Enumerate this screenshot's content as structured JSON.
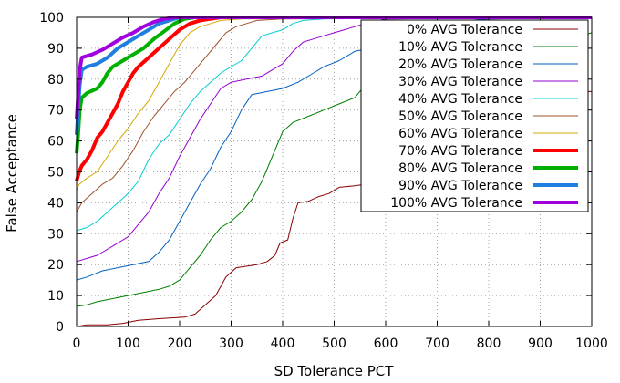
{
  "chart_data": {
    "type": "line",
    "title": "",
    "xlabel": "SD Tolerance PCT",
    "ylabel": "False Acceptance",
    "xlim": [
      0,
      1000
    ],
    "ylim": [
      0,
      100
    ],
    "xticks": [
      "0",
      "100",
      "200",
      "300",
      "400",
      "500",
      "600",
      "700",
      "800",
      "900",
      "1000"
    ],
    "yticks": [
      "0",
      "10",
      "20",
      "30",
      "40",
      "50",
      "60",
      "70",
      "80",
      "90",
      "100"
    ],
    "grid": true,
    "legend_position": "top-right",
    "series": [
      {
        "name": "0% AVG Tolerance",
        "color": "#8b0000",
        "width": 1,
        "points": [
          [
            0,
            0
          ],
          [
            20,
            0.5
          ],
          [
            60,
            0.5
          ],
          [
            90,
            1
          ],
          [
            120,
            2
          ],
          [
            160,
            2.5
          ],
          [
            210,
            3
          ],
          [
            230,
            4
          ],
          [
            250,
            7
          ],
          [
            270,
            10
          ],
          [
            290,
            16
          ],
          [
            310,
            19
          ],
          [
            350,
            20
          ],
          [
            370,
            21
          ],
          [
            385,
            23
          ],
          [
            395,
            27
          ],
          [
            410,
            28
          ],
          [
            420,
            35
          ],
          [
            430,
            40
          ],
          [
            450,
            40.5
          ],
          [
            470,
            42
          ],
          [
            490,
            43
          ],
          [
            510,
            45
          ],
          [
            540,
            45.5
          ],
          [
            560,
            46
          ],
          [
            580,
            47
          ],
          [
            600,
            48
          ],
          [
            640,
            50
          ],
          [
            700,
            52
          ],
          [
            750,
            53
          ],
          [
            800,
            58
          ],
          [
            840,
            60
          ],
          [
            880,
            64
          ],
          [
            920,
            68
          ],
          [
            960,
            72
          ],
          [
            990,
            76
          ],
          [
            1000,
            76
          ]
        ]
      },
      {
        "name": "10% AVG Tolerance",
        "color": "#008000",
        "width": 1,
        "points": [
          [
            0,
            6.5
          ],
          [
            20,
            7
          ],
          [
            40,
            8
          ],
          [
            70,
            9
          ],
          [
            100,
            10
          ],
          [
            130,
            11
          ],
          [
            160,
            12
          ],
          [
            180,
            13
          ],
          [
            200,
            15
          ],
          [
            220,
            19
          ],
          [
            240,
            23
          ],
          [
            260,
            28
          ],
          [
            280,
            32
          ],
          [
            300,
            34
          ],
          [
            320,
            37
          ],
          [
            340,
            41
          ],
          [
            360,
            47
          ],
          [
            380,
            55
          ],
          [
            400,
            63
          ],
          [
            420,
            66
          ],
          [
            450,
            68
          ],
          [
            480,
            70
          ],
          [
            510,
            72
          ],
          [
            540,
            74
          ],
          [
            560,
            78
          ],
          [
            580,
            80
          ],
          [
            620,
            81
          ],
          [
            660,
            83
          ],
          [
            700,
            85
          ],
          [
            740,
            86
          ],
          [
            780,
            87
          ],
          [
            820,
            89
          ],
          [
            860,
            90
          ],
          [
            900,
            92
          ],
          [
            940,
            93
          ],
          [
            980,
            94
          ],
          [
            1000,
            95
          ]
        ]
      },
      {
        "name": "20% AVG Tolerance",
        "color": "#0060c0",
        "width": 1,
        "points": [
          [
            0,
            15
          ],
          [
            20,
            16
          ],
          [
            50,
            18
          ],
          [
            80,
            19
          ],
          [
            110,
            20
          ],
          [
            140,
            21
          ],
          [
            160,
            24
          ],
          [
            180,
            28
          ],
          [
            200,
            34
          ],
          [
            220,
            40
          ],
          [
            240,
            46
          ],
          [
            260,
            51
          ],
          [
            280,
            58
          ],
          [
            300,
            63
          ],
          [
            320,
            70
          ],
          [
            340,
            75
          ],
          [
            370,
            76
          ],
          [
            400,
            77
          ],
          [
            430,
            79
          ],
          [
            460,
            82
          ],
          [
            480,
            84
          ],
          [
            510,
            86
          ],
          [
            540,
            89
          ],
          [
            570,
            90
          ],
          [
            600,
            92
          ],
          [
            640,
            94
          ],
          [
            680,
            96
          ],
          [
            720,
            98
          ],
          [
            760,
            99
          ],
          [
            800,
            99.5
          ],
          [
            1000,
            100
          ]
        ]
      },
      {
        "name": "30% AVG Tolerance",
        "color": "#9400d3",
        "width": 1,
        "points": [
          [
            0,
            21
          ],
          [
            20,
            22
          ],
          [
            40,
            23
          ],
          [
            70,
            26
          ],
          [
            100,
            29
          ],
          [
            120,
            33
          ],
          [
            140,
            37
          ],
          [
            160,
            43
          ],
          [
            180,
            48
          ],
          [
            200,
            55
          ],
          [
            220,
            61
          ],
          [
            240,
            67
          ],
          [
            260,
            72
          ],
          [
            280,
            77
          ],
          [
            300,
            79
          ],
          [
            330,
            80
          ],
          [
            360,
            81
          ],
          [
            380,
            83
          ],
          [
            400,
            85
          ],
          [
            420,
            89
          ],
          [
            440,
            92
          ],
          [
            460,
            93
          ],
          [
            480,
            94
          ],
          [
            500,
            95
          ],
          [
            520,
            96
          ],
          [
            560,
            98
          ],
          [
            600,
            99.5
          ],
          [
            1000,
            100
          ]
        ]
      },
      {
        "name": "40% AVG Tolerance",
        "color": "#00ced1",
        "width": 1,
        "points": [
          [
            0,
            31
          ],
          [
            20,
            32
          ],
          [
            40,
            34
          ],
          [
            60,
            37
          ],
          [
            80,
            40
          ],
          [
            100,
            43
          ],
          [
            120,
            47
          ],
          [
            140,
            54
          ],
          [
            160,
            59
          ],
          [
            180,
            62
          ],
          [
            200,
            67
          ],
          [
            220,
            72
          ],
          [
            240,
            76
          ],
          [
            260,
            79
          ],
          [
            280,
            82
          ],
          [
            300,
            84
          ],
          [
            320,
            86
          ],
          [
            340,
            90
          ],
          [
            360,
            94
          ],
          [
            380,
            95
          ],
          [
            400,
            96
          ],
          [
            420,
            98
          ],
          [
            440,
            99
          ],
          [
            480,
            99.5
          ],
          [
            1000,
            100
          ]
        ]
      },
      {
        "name": "50% AVG Tolerance",
        "color": "#a0522d",
        "width": 1,
        "points": [
          [
            0,
            37
          ],
          [
            10,
            40
          ],
          [
            30,
            43
          ],
          [
            50,
            46
          ],
          [
            70,
            48
          ],
          [
            90,
            52
          ],
          [
            110,
            57
          ],
          [
            130,
            63
          ],
          [
            150,
            68
          ],
          [
            170,
            72
          ],
          [
            190,
            76
          ],
          [
            210,
            79
          ],
          [
            230,
            83
          ],
          [
            250,
            87
          ],
          [
            270,
            91
          ],
          [
            290,
            95
          ],
          [
            310,
            97
          ],
          [
            330,
            98
          ],
          [
            350,
            99
          ],
          [
            400,
            99.5
          ],
          [
            1000,
            100
          ]
        ]
      },
      {
        "name": "60% AVG Tolerance",
        "color": "#d4a800",
        "width": 1,
        "points": [
          [
            0,
            44
          ],
          [
            5,
            46
          ],
          [
            20,
            48
          ],
          [
            40,
            50
          ],
          [
            60,
            55
          ],
          [
            80,
            60
          ],
          [
            100,
            64
          ],
          [
            120,
            69
          ],
          [
            140,
            73
          ],
          [
            160,
            79
          ],
          [
            180,
            85
          ],
          [
            200,
            91
          ],
          [
            220,
            95
          ],
          [
            240,
            97
          ],
          [
            260,
            98
          ],
          [
            280,
            99
          ],
          [
            320,
            99.5
          ],
          [
            1000,
            100
          ]
        ]
      },
      {
        "name": "70% AVG Tolerance",
        "color": "#ff0000",
        "width": 4,
        "points": [
          [
            0,
            47
          ],
          [
            5,
            50
          ],
          [
            10,
            52
          ],
          [
            20,
            54
          ],
          [
            30,
            57
          ],
          [
            40,
            61
          ],
          [
            50,
            63
          ],
          [
            60,
            66
          ],
          [
            70,
            69
          ],
          [
            80,
            72
          ],
          [
            90,
            76
          ],
          [
            100,
            79
          ],
          [
            110,
            82
          ],
          [
            120,
            84
          ],
          [
            140,
            87
          ],
          [
            160,
            90
          ],
          [
            180,
            93
          ],
          [
            200,
            96
          ],
          [
            220,
            98
          ],
          [
            240,
            99
          ],
          [
            260,
            99.5
          ],
          [
            280,
            100
          ],
          [
            1000,
            100
          ]
        ]
      },
      {
        "name": "80% AVG Tolerance",
        "color": "#00b000",
        "width": 4,
        "points": [
          [
            0,
            56
          ],
          [
            3,
            62
          ],
          [
            6,
            70
          ],
          [
            10,
            74
          ],
          [
            20,
            75.5
          ],
          [
            40,
            77
          ],
          [
            50,
            79
          ],
          [
            60,
            82
          ],
          [
            70,
            84
          ],
          [
            90,
            86
          ],
          [
            110,
            88
          ],
          [
            130,
            90
          ],
          [
            150,
            93
          ],
          [
            170,
            95.5
          ],
          [
            190,
            98
          ],
          [
            210,
            99.5
          ],
          [
            230,
            100
          ],
          [
            1000,
            100
          ]
        ]
      },
      {
        "name": "90% AVG Tolerance",
        "color": "#1e7fe0",
        "width": 4,
        "points": [
          [
            0,
            62
          ],
          [
            3,
            70
          ],
          [
            6,
            78
          ],
          [
            10,
            83
          ],
          [
            20,
            84
          ],
          [
            40,
            85
          ],
          [
            60,
            87
          ],
          [
            80,
            90
          ],
          [
            100,
            92
          ],
          [
            120,
            94
          ],
          [
            140,
            96
          ],
          [
            160,
            98
          ],
          [
            180,
            99
          ],
          [
            200,
            100
          ],
          [
            1000,
            100
          ]
        ]
      },
      {
        "name": "100% AVG Tolerance",
        "color": "#a000e0",
        "width": 4,
        "points": [
          [
            0,
            67
          ],
          [
            3,
            75
          ],
          [
            6,
            83
          ],
          [
            10,
            87
          ],
          [
            30,
            88
          ],
          [
            50,
            89.5
          ],
          [
            70,
            91.5
          ],
          [
            90,
            93.5
          ],
          [
            110,
            95
          ],
          [
            130,
            97
          ],
          [
            150,
            98.5
          ],
          [
            170,
            99.5
          ],
          [
            190,
            100
          ],
          [
            1000,
            100
          ]
        ]
      }
    ]
  }
}
